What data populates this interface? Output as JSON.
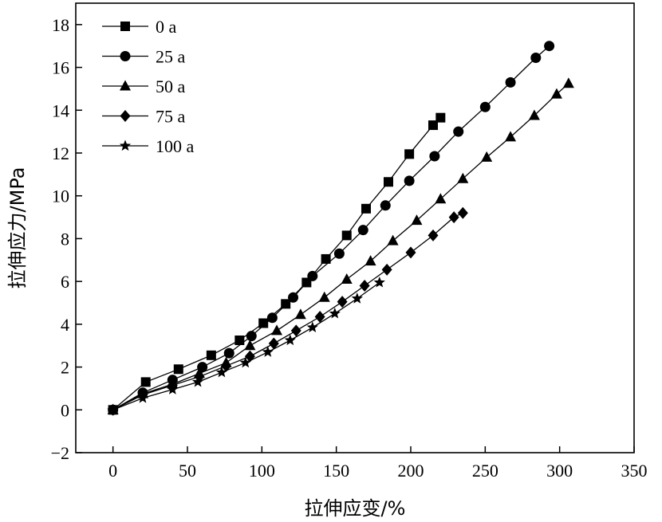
{
  "chart_data": {
    "type": "line",
    "xlabel": "拉伸应变/%",
    "ylabel": "拉伸应力/MPa",
    "xlim": [
      -25,
      350
    ],
    "ylim": [
      -2,
      19
    ],
    "xticks": [
      0,
      50,
      100,
      150,
      200,
      250,
      300,
      350
    ],
    "yticks": [
      -2,
      0,
      2,
      4,
      6,
      8,
      10,
      12,
      14,
      16,
      18
    ],
    "legend": {
      "position": "top-left"
    },
    "grid": false,
    "series": [
      {
        "name": "0 a",
        "marker": "square",
        "x": [
          0,
          22,
          44,
          66,
          85,
          101,
          116,
          130,
          143,
          157,
          170,
          185,
          199,
          215,
          220
        ],
        "y": [
          0,
          1.3,
          1.9,
          2.55,
          3.25,
          4.05,
          4.95,
          5.95,
          7.05,
          8.15,
          9.4,
          10.65,
          11.95,
          13.3,
          13.65
        ]
      },
      {
        "name": "25 a",
        "marker": "circle",
        "x": [
          0,
          20,
          40,
          60,
          78,
          93,
          107,
          121,
          134,
          152,
          168,
          183,
          199,
          216,
          232,
          250,
          267,
          284,
          293
        ],
        "y": [
          0,
          0.8,
          1.4,
          2.0,
          2.65,
          3.45,
          4.3,
          5.25,
          6.25,
          7.3,
          8.4,
          9.55,
          10.7,
          11.85,
          13.0,
          14.15,
          15.3,
          16.45,
          17.0
        ]
      },
      {
        "name": "50 a",
        "marker": "triangle",
        "x": [
          0,
          20,
          40,
          58,
          76,
          92,
          110,
          126,
          142,
          157,
          173,
          188,
          204,
          220,
          235,
          251,
          267,
          283,
          298,
          306
        ],
        "y": [
          0,
          0.75,
          1.2,
          1.7,
          2.2,
          3.0,
          3.7,
          4.45,
          5.25,
          6.1,
          6.95,
          7.9,
          8.85,
          9.85,
          10.8,
          11.8,
          12.75,
          13.75,
          14.75,
          15.25
        ]
      },
      {
        "name": "75 a",
        "marker": "diamond",
        "x": [
          0,
          20,
          40,
          58,
          76,
          92,
          108,
          123,
          139,
          154,
          169,
          184,
          200,
          215,
          229,
          235
        ],
        "y": [
          0,
          0.7,
          1.15,
          1.55,
          2.05,
          2.5,
          3.1,
          3.7,
          4.35,
          5.05,
          5.8,
          6.55,
          7.35,
          8.15,
          9.0,
          9.2
        ]
      },
      {
        "name": "100 a",
        "marker": "star",
        "x": [
          0,
          20,
          40,
          57,
          73,
          89,
          104,
          119,
          134,
          149,
          164,
          179
        ],
        "y": [
          0,
          0.55,
          0.95,
          1.3,
          1.75,
          2.2,
          2.7,
          3.25,
          3.85,
          4.5,
          5.2,
          5.95
        ]
      }
    ]
  }
}
